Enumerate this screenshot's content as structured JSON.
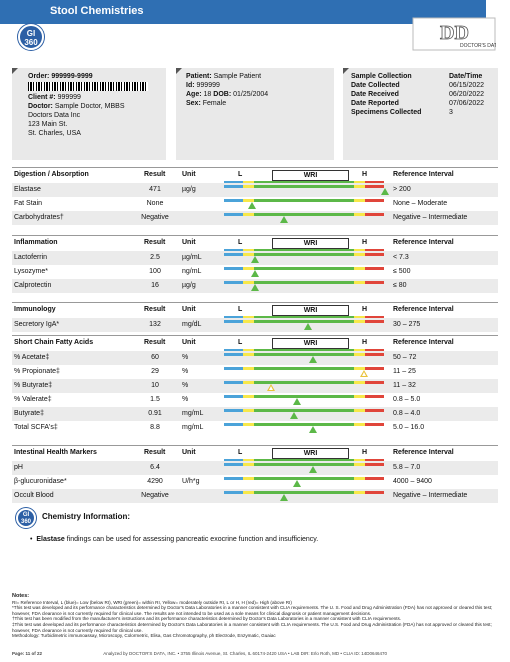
{
  "header": {
    "logo_text": "GI 360",
    "title": "Stool Chemistries",
    "brand_text": "DOCTOR'S DATA INC"
  },
  "patient_box": {
    "order_label": "Order:",
    "order": "999999-9999",
    "client_label": "Client #:",
    "client": "999999",
    "doctor_label": "Doctor:",
    "doctor": "Sample Doctor, MBBS",
    "addr1": "Doctors Data Inc",
    "addr2": "123 Main St.",
    "addr3": "St. Charles, USA"
  },
  "patient_info": {
    "patient_label": "Patient:",
    "patient": "Sample Patient",
    "id_label": "Id:",
    "id": "999999",
    "age_label": "Age:",
    "age": "18",
    "dob_label": "DOB:",
    "dob": "01/25/2004",
    "sex_label": "Sex:",
    "sex": "Female"
  },
  "collection": {
    "head_left": "Sample Collection",
    "head_right": "Date/Time",
    "rows": [
      {
        "label": "Date Collected",
        "value": "06/15/2022"
      },
      {
        "label": "Date Received",
        "value": "06/20/2022"
      },
      {
        "label": "Date Reported",
        "value": "07/06/2022"
      },
      {
        "label": "Specimens Collected",
        "value": "3"
      }
    ]
  },
  "columns": {
    "result": "Result",
    "unit": "Unit",
    "ref": "Reference Interval",
    "L": "L",
    "WRI": "WRI",
    "H": "H"
  },
  "sections": [
    {
      "title": "Digestion / Absorption",
      "rows": [
        {
          "name": "Elastase",
          "result": "471",
          "unit": "µg/g",
          "ref": "> 200",
          "pos": 0.93,
          "warn": false
        },
        {
          "name": "Fat Stain",
          "result": "None",
          "unit": "",
          "ref": "None – Moderate",
          "pos": 0.1,
          "warn": false
        },
        {
          "name": "Carbohydrates†",
          "result": "Negative",
          "unit": "",
          "ref": "Negative – Intermediate",
          "pos": 0.3,
          "warn": false
        }
      ]
    },
    {
      "title": "Inflammation",
      "rows": [
        {
          "name": "Lactoferrin",
          "result": "2.5",
          "unit": "µg/mL",
          "ref": "< 7.3",
          "pos": 0.12,
          "warn": false
        },
        {
          "name": "Lysozyme*",
          "result": "100",
          "unit": "ng/mL",
          "ref": "≤ 500",
          "pos": 0.12,
          "warn": false
        },
        {
          "name": "Calprotectin",
          "result": "16",
          "unit": "µg/g",
          "ref": "≤ 80",
          "pos": 0.12,
          "warn": false
        }
      ]
    },
    {
      "title": "Immunology",
      "rows": [
        {
          "name": "Secretory IgA*",
          "result": "132",
          "unit": "mg/dL",
          "ref": "30 – 275",
          "pos": 0.45,
          "warn": false
        }
      ]
    },
    {
      "title": "Short Chain Fatty Acids",
      "rows": [
        {
          "name": "% Acetate‡",
          "result": "60",
          "unit": "%",
          "ref": "50 – 72",
          "pos": 0.48,
          "warn": false
        },
        {
          "name": "% Propionate‡",
          "result": "29",
          "unit": "%",
          "ref": "11 – 25",
          "pos": 0.8,
          "warn": true
        },
        {
          "name": "% Butyrate‡",
          "result": "10",
          "unit": "%",
          "ref": "11 – 32",
          "pos": 0.22,
          "warn": true
        },
        {
          "name": "% Valerate‡",
          "result": "1.5",
          "unit": "%",
          "ref": "0.8 – 5.0",
          "pos": 0.38,
          "warn": false
        },
        {
          "name": "Butyrate‡",
          "result": "0.91",
          "unit": "mg/mL",
          "ref": "0.8 – 4.0",
          "pos": 0.36,
          "warn": false
        },
        {
          "name": "Total SCFA's‡",
          "result": "8.8",
          "unit": "mg/mL",
          "ref": "5.0 – 16.0",
          "pos": 0.48,
          "warn": false
        }
      ]
    },
    {
      "title": "Intestinal Health Markers",
      "rows": [
        {
          "name": "pH",
          "result": "6.4",
          "unit": "",
          "ref": "5.8 – 7.0",
          "pos": 0.48,
          "warn": false
        },
        {
          "name": "β-glucuronidase*",
          "result": "4290",
          "unit": "U/h*g",
          "ref": "4000 – 9400",
          "pos": 0.38,
          "warn": false
        },
        {
          "name": "Occult Blood",
          "result": "Negative",
          "unit": "",
          "ref": "Negative – Intermediate",
          "pos": 0.3,
          "warn": false
        }
      ]
    }
  ],
  "chem_info": {
    "title": "Chemistry Information:",
    "bullet_bold": "Elastase",
    "bullet_rest": " findings can be used for assessing pancreatic exocrine function and insufficiency."
  },
  "notes": {
    "head": "Notes:",
    "l1": "RI= Reference Interval, L (blue)= Low (below RI), WRI (green)= within RI, Yellow= moderately outside RI, L or H, H (red)= High (above RI)",
    "l2": "*This test was developed and its performance characteristics determined by Doctor's Data Laboratories in a manner consistent with CLIA requirements. The U. S. Food and Drug Administration (FDA) has not approved or cleared this test; however, FDA clearance is not currently required for clinical use. The results are not intended to be used as a sole means for clinical diagnosis or patient management decisions.",
    "l3": "†This test has been modified from the manufacturer's instructions and its performance characteristics determined by Doctor's Data Laboratories in a manner consistent with CLIA requirements.",
    "l4": "‡This test was developed and its performance characteristics determined by Doctor's Data Laboratories in a manner consistent with CLIA requirements. The U.S. Food and Drug Administration (FDA) has not approved or cleared this test; however, FDA clearance is not currently required for clinical use.",
    "l5": "Methodology: Turbidimetric immunoassay, Microscopy, Colormetric, Elisa, Gas Chromotography, ph Electrode, Enzymatic, Guaiac"
  },
  "footer": {
    "page": "Page: 11 of 22",
    "lab": "Analyzed by DOCTOR'S DATA, INC. • 3755 Illinois Avenue, St. Charles, IL 60174-2420 USA • LAB DIR: Erlo Roth, MD • CLIA ID: 14D0646470"
  }
}
